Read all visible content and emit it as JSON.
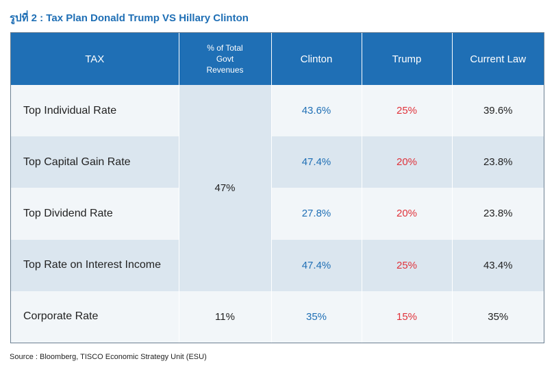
{
  "title": "รูปที่ 2 : Tax Plan Donald Trump VS  Hillary Clinton",
  "headers": {
    "tax": "TAX",
    "share_line1": "% of Total",
    "share_line2": "Govt",
    "share_line3": "Revenues",
    "clinton": "Clinton",
    "trump": "Trump",
    "current_law": "Current Law"
  },
  "rows": [
    {
      "label": "Top Individual Rate",
      "clinton": "43.6%",
      "trump": "25%",
      "current_law": "39.6%"
    },
    {
      "label": "Top Capital Gain Rate",
      "clinton": "47.4%",
      "trump": "20%",
      "current_law": "23.8%"
    },
    {
      "label": "Top Dividend Rate",
      "clinton": "27.8%",
      "trump": "20%",
      "current_law": "23.8%"
    },
    {
      "label": "Top Rate on Interest Income",
      "clinton": "47.4%",
      "trump": "25%",
      "current_law": "43.4%"
    },
    {
      "label": "Corporate Rate",
      "share": "11%",
      "clinton": "35%",
      "trump": "15%",
      "current_law": "35%"
    }
  ],
  "merged_share": "47%",
  "source": "Source : Bloomberg, TISCO Economic Strategy Unit (ESU)",
  "colors": {
    "header_bg": "#1f6fb5",
    "clinton": "#1f6fb5",
    "trump": "#e0323a",
    "row_light": "#f2f6f9",
    "row_dark": "#dbe6ef"
  }
}
